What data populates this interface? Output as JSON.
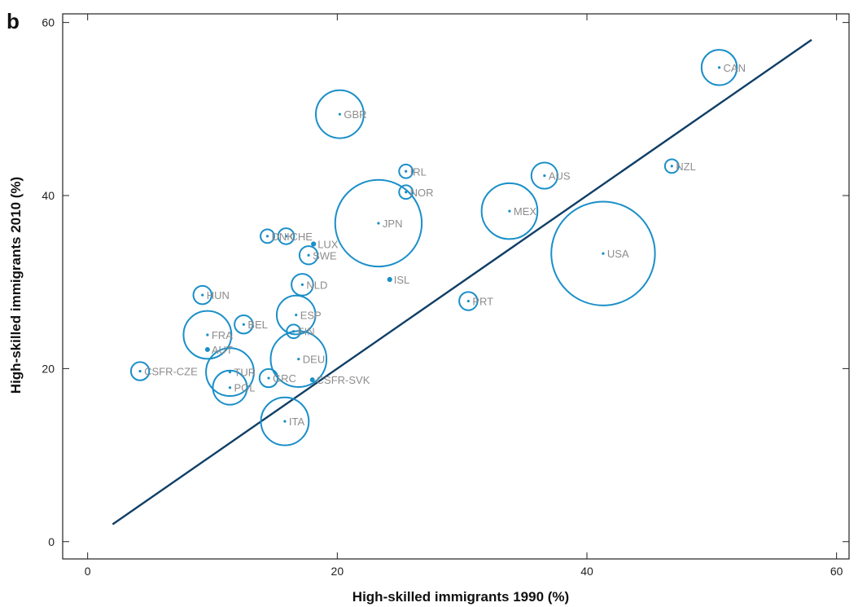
{
  "chart_data": {
    "type": "scatter",
    "panel_label": "b",
    "title": "",
    "xlabel": "High-skilled immigrants 1990 (%)",
    "ylabel": "High-skilled  immigrants 2010 (%)",
    "xlim": [
      -2,
      61
    ],
    "ylim": [
      -2,
      61
    ],
    "xticks": [
      0,
      20,
      40,
      60
    ],
    "yticks": [
      0,
      20,
      40,
      60
    ],
    "grid": false,
    "bubble_color": "#1a8fc8",
    "line_color": "#0f3e66",
    "label_color": "#8c8c8c",
    "trend_line": {
      "x": [
        2,
        58
      ],
      "y": [
        2,
        58
      ]
    },
    "points": [
      {
        "label": "CAN",
        "x": 50.6,
        "y": 54.8,
        "size": 3.1
      },
      {
        "label": "GBR",
        "x": 20.2,
        "y": 49.4,
        "size": 4.2
      },
      {
        "label": "IRL",
        "x": 25.5,
        "y": 42.8,
        "size": 1.2
      },
      {
        "label": "NOR",
        "x": 25.5,
        "y": 40.4,
        "size": 1.2
      },
      {
        "label": "AUS",
        "x": 36.6,
        "y": 42.3,
        "size": 2.3
      },
      {
        "label": "NZL",
        "x": 46.8,
        "y": 43.4,
        "size": 1.2
      },
      {
        "label": "JPN",
        "x": 23.3,
        "y": 36.8,
        "size": 7.6
      },
      {
        "label": "MEX",
        "x": 33.8,
        "y": 38.2,
        "size": 4.9
      },
      {
        "label": "USA",
        "x": 41.3,
        "y": 33.3,
        "size": 9.1
      },
      {
        "label": "DNK",
        "x": 14.4,
        "y": 35.3,
        "size": 1.2
      },
      {
        "label": "CHE",
        "x": 15.9,
        "y": 35.3,
        "size": 1.4
      },
      {
        "label": "LUX",
        "x": 18.1,
        "y": 34.4,
        "size": 0.3
      },
      {
        "label": "SWE",
        "x": 17.7,
        "y": 33.1,
        "size": 1.6
      },
      {
        "label": "ISL",
        "x": 24.2,
        "y": 30.3,
        "size": 0.3
      },
      {
        "label": "NLD",
        "x": 17.2,
        "y": 29.7,
        "size": 1.9
      },
      {
        "label": "HUN",
        "x": 9.2,
        "y": 28.5,
        "size": 1.6
      },
      {
        "label": "PRT",
        "x": 30.5,
        "y": 27.8,
        "size": 1.6
      },
      {
        "label": "ESP",
        "x": 16.7,
        "y": 26.2,
        "size": 3.4
      },
      {
        "label": "BEL",
        "x": 12.5,
        "y": 25.1,
        "size": 1.6
      },
      {
        "label": "FIN",
        "x": 16.5,
        "y": 24.3,
        "size": 1.2
      },
      {
        "label": "FRA",
        "x": 9.6,
        "y": 23.9,
        "size": 4.2
      },
      {
        "label": "AUT",
        "x": 9.6,
        "y": 22.2,
        "size": 0.2
      },
      {
        "label": "DEU",
        "x": 16.9,
        "y": 21.1,
        "size": 4.9
      },
      {
        "label": "CSFR-CZE",
        "x": 4.2,
        "y": 19.7,
        "size": 1.6
      },
      {
        "label": "TUR",
        "x": 11.4,
        "y": 19.6,
        "size": 4.2
      },
      {
        "label": "GRC",
        "x": 14.5,
        "y": 18.9,
        "size": 1.6
      },
      {
        "label": "CSFR-SVK",
        "x": 18.0,
        "y": 18.7,
        "size": 0.2
      },
      {
        "label": "POL",
        "x": 11.4,
        "y": 17.8,
        "size": 3.0
      },
      {
        "label": "ITA",
        "x": 15.8,
        "y": 13.9,
        "size": 4.2
      }
    ]
  }
}
